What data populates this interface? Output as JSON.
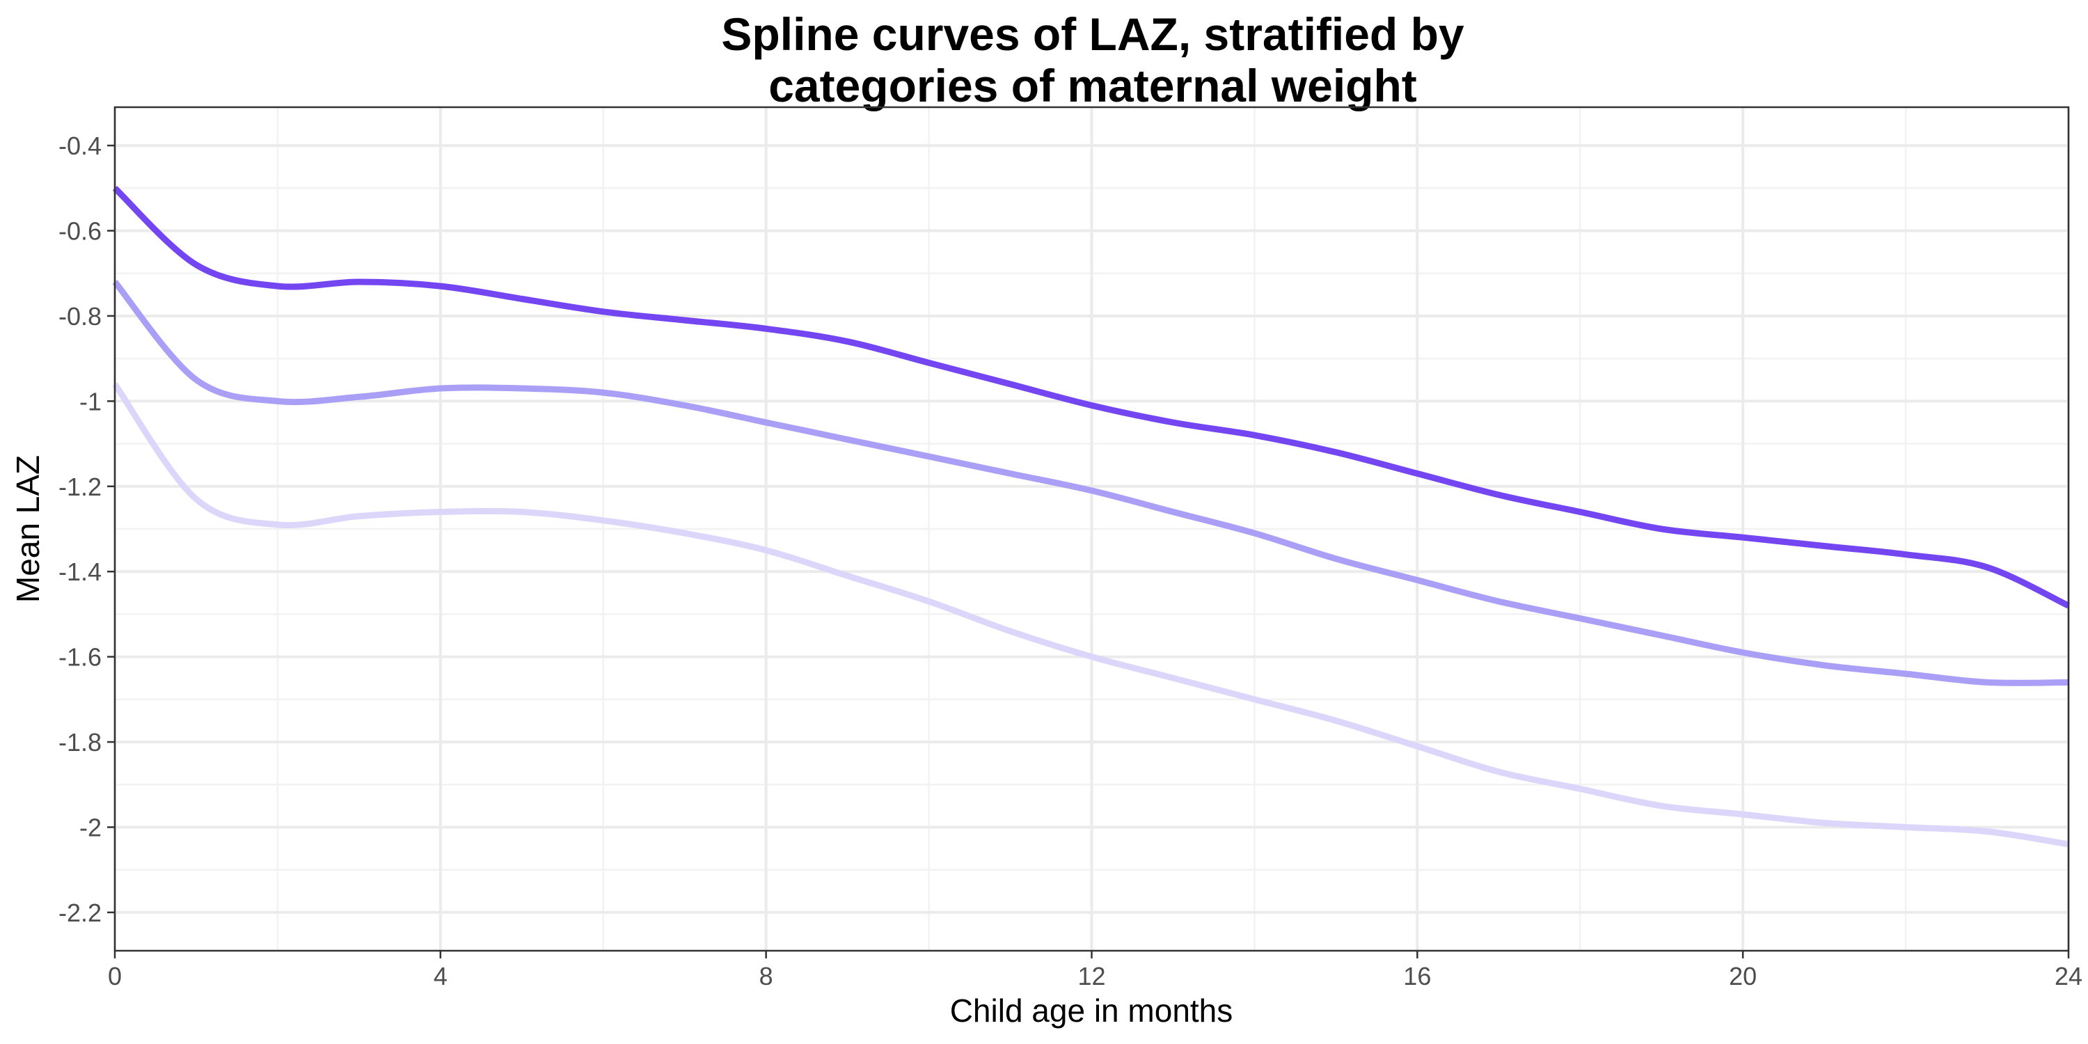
{
  "chart_data": {
    "type": "line",
    "title_lines": [
      "Spline curves of LAZ, stratified by",
      "categories of maternal weight"
    ],
    "xlabel": "Child age in months",
    "ylabel": "Mean LAZ",
    "xlim": [
      0,
      24
    ],
    "ylim": [
      -2.29,
      -0.31
    ],
    "x_ticks": [
      0,
      4,
      8,
      12,
      16,
      20,
      24
    ],
    "x_tick_labels": [
      "0",
      "4",
      "8",
      "12",
      "16",
      "20",
      "24"
    ],
    "y_ticks": [
      -0.4,
      -0.6,
      -0.8,
      -1.0,
      -1.2,
      -1.4,
      -1.6,
      -1.8,
      -2.0,
      -2.2
    ],
    "y_tick_labels": [
      "-0.4",
      "-0.6",
      "-0.8",
      "-1",
      "-1.2",
      "-1.4",
      "-1.6",
      "-1.8",
      "-2",
      "-2.2"
    ],
    "grid": true,
    "legend": "none",
    "series": [
      {
        "name": "series-1",
        "color": "#7346f2",
        "x": [
          0,
          1,
          2,
          3,
          4,
          5,
          6,
          7,
          8,
          9,
          10,
          11,
          12,
          13,
          14,
          15,
          16,
          17,
          18,
          19,
          20,
          21,
          22,
          23,
          24
        ],
        "values": [
          -0.5,
          -0.68,
          -0.73,
          -0.72,
          -0.73,
          -0.76,
          -0.79,
          -0.81,
          -0.83,
          -0.86,
          -0.91,
          -0.96,
          -1.01,
          -1.05,
          -1.08,
          -1.12,
          -1.17,
          -1.22,
          -1.26,
          -1.3,
          -1.32,
          -1.34,
          -1.36,
          -1.39,
          -1.48
        ]
      },
      {
        "name": "series-2",
        "color": "#aa9ff6",
        "x": [
          0,
          1,
          2,
          3,
          4,
          5,
          6,
          7,
          8,
          9,
          10,
          11,
          12,
          13,
          14,
          15,
          16,
          17,
          18,
          19,
          20,
          21,
          22,
          23,
          24
        ],
        "values": [
          -0.72,
          -0.95,
          -1.0,
          -0.99,
          -0.97,
          -0.97,
          -0.98,
          -1.01,
          -1.05,
          -1.09,
          -1.13,
          -1.17,
          -1.21,
          -1.26,
          -1.31,
          -1.37,
          -1.42,
          -1.47,
          -1.51,
          -1.55,
          -1.59,
          -1.62,
          -1.64,
          -1.66,
          -1.66
        ]
      },
      {
        "name": "series-3",
        "color": "#ddd6fb",
        "x": [
          0,
          1,
          2,
          3,
          4,
          5,
          6,
          7,
          8,
          9,
          10,
          11,
          12,
          13,
          14,
          15,
          16,
          17,
          18,
          19,
          20,
          21,
          22,
          23,
          24
        ],
        "values": [
          -0.96,
          -1.23,
          -1.29,
          -1.27,
          -1.26,
          -1.26,
          -1.28,
          -1.31,
          -1.35,
          -1.41,
          -1.47,
          -1.54,
          -1.6,
          -1.65,
          -1.7,
          -1.75,
          -1.81,
          -1.87,
          -1.91,
          -1.95,
          -1.97,
          -1.99,
          -2.0,
          -2.01,
          -2.04
        ]
      }
    ]
  }
}
